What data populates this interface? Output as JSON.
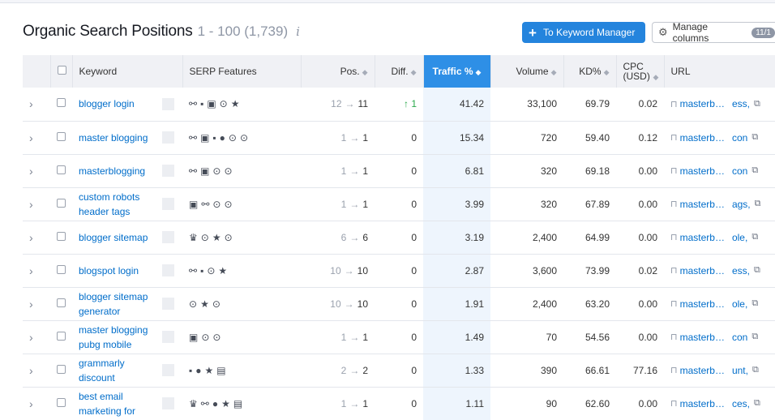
{
  "header": {
    "title": "Organic Search Positions",
    "range": "1 - 100 (1,739)",
    "info_glyph": "i",
    "keyword_manager_label": "To Keyword Manager",
    "manage_columns_label": "Manage columns",
    "manage_columns_badge": "11/1"
  },
  "columns": {
    "keyword": "Keyword",
    "serp": "SERP Features",
    "pos": "Pos.",
    "diff": "Diff.",
    "traffic": "Traffic %",
    "volume": "Volume",
    "kd": "KD%",
    "cpc": "CPC (USD)",
    "url": "URL"
  },
  "rows": [
    {
      "keyword": "blogger login",
      "serp": [
        "link-icon",
        "question-icon",
        "image-icon",
        "video-icon",
        "star-icon"
      ],
      "pos_prev": "12",
      "pos_cur": "11",
      "diff": "1",
      "diff_dir": "up",
      "traffic": "41.42",
      "volume": "33,100",
      "kd": "69.79",
      "cpc": "0.02",
      "url_start": "masterb…",
      "url_end": "ess,"
    },
    {
      "keyword": "master blogging",
      "serp": [
        "link-icon",
        "image-icon",
        "question-icon",
        "faq-icon",
        "video-icon",
        "video-icon"
      ],
      "pos_prev": "1",
      "pos_cur": "1",
      "diff": "0",
      "diff_dir": "none",
      "traffic": "15.34",
      "volume": "720",
      "kd": "59.40",
      "cpc": "0.12",
      "url_start": "masterb…",
      "url_end": "con"
    },
    {
      "keyword": "masterblogging",
      "serp": [
        "link-icon",
        "image-icon",
        "video-icon",
        "video-icon"
      ],
      "pos_prev": "1",
      "pos_cur": "1",
      "diff": "0",
      "diff_dir": "none",
      "traffic": "6.81",
      "volume": "320",
      "kd": "69.18",
      "cpc": "0.00",
      "url_start": "masterb…",
      "url_end": "con"
    },
    {
      "keyword": "custom robots header tags",
      "serp": [
        "image-icon",
        "link-icon",
        "video-icon",
        "video-icon"
      ],
      "pos_prev": "1",
      "pos_cur": "1",
      "diff": "0",
      "diff_dir": "none",
      "traffic": "3.99",
      "volume": "320",
      "kd": "67.89",
      "cpc": "0.00",
      "url_start": "masterb…",
      "url_end": "ags,"
    },
    {
      "keyword": "blogger sitemap",
      "serp": [
        "crown-icon",
        "video-icon",
        "star-icon",
        "video-icon"
      ],
      "pos_prev": "6",
      "pos_cur": "6",
      "diff": "0",
      "diff_dir": "none",
      "traffic": "3.19",
      "volume": "2,400",
      "kd": "64.99",
      "cpc": "0.00",
      "url_start": "masterb…",
      "url_end": "ole,"
    },
    {
      "keyword": "blogspot login",
      "serp": [
        "link-icon",
        "question-icon",
        "video-icon",
        "star-icon"
      ],
      "pos_prev": "10",
      "pos_cur": "10",
      "diff": "0",
      "diff_dir": "none",
      "traffic": "2.87",
      "volume": "3,600",
      "kd": "73.99",
      "cpc": "0.02",
      "url_start": "masterb…",
      "url_end": "ess,"
    },
    {
      "keyword": "blogger sitemap generator",
      "serp": [
        "video-icon",
        "star-icon",
        "video-icon"
      ],
      "pos_prev": "10",
      "pos_cur": "10",
      "diff": "0",
      "diff_dir": "none",
      "traffic": "1.91",
      "volume": "2,400",
      "kd": "63.20",
      "cpc": "0.00",
      "url_start": "masterb…",
      "url_end": "ole,"
    },
    {
      "keyword": "master blogging pubg mobile",
      "serp": [
        "image-icon",
        "video-icon",
        "video-icon"
      ],
      "pos_prev": "1",
      "pos_cur": "1",
      "diff": "0",
      "diff_dir": "none",
      "traffic": "1.49",
      "volume": "70",
      "kd": "54.56",
      "cpc": "0.00",
      "url_start": "masterb…",
      "url_end": "con"
    },
    {
      "keyword": "grammarly discount",
      "serp": [
        "question-icon",
        "faq-icon",
        "star-icon",
        "ad-icon"
      ],
      "pos_prev": "2",
      "pos_cur": "2",
      "diff": "0",
      "diff_dir": "none",
      "traffic": "1.33",
      "volume": "390",
      "kd": "66.61",
      "cpc": "77.16",
      "url_start": "masterb…",
      "url_end": "unt,"
    },
    {
      "keyword": "best email marketing for",
      "serp": [
        "crown-icon",
        "link-icon",
        "faq-icon",
        "star-icon",
        "ad-icon"
      ],
      "pos_prev": "1",
      "pos_cur": "1",
      "diff": "0",
      "diff_dir": "none",
      "traffic": "1.11",
      "volume": "90",
      "kd": "62.60",
      "cpc": "0.00",
      "url_start": "masterb…",
      "url_end": "ces,"
    }
  ],
  "colors": {
    "accent": "#2484dd",
    "link": "#006dca",
    "active_header": "#2e8fe6",
    "active_column": "#eef5fd",
    "positive": "#2aa84b"
  }
}
